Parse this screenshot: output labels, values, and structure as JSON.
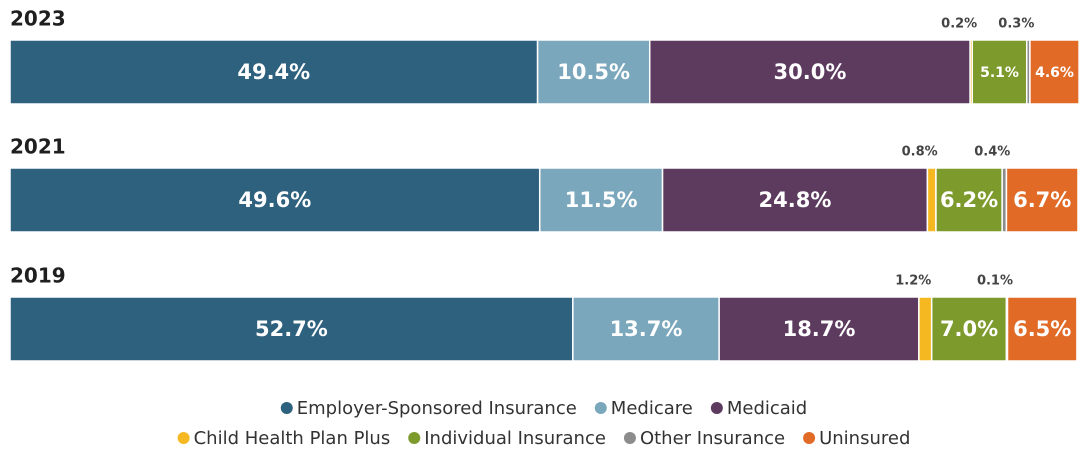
{
  "chart_data": {
    "type": "stacked-bar",
    "orientation": "horizontal",
    "categories": [
      "2023",
      "2021",
      "2019"
    ],
    "xlim": [
      0,
      100
    ],
    "series": [
      {
        "name": "Employer-Sponsored Insurance",
        "color": "#2e617e",
        "values": [
          49.4,
          49.6,
          52.7
        ],
        "value_labels": [
          "49.4%",
          "49.6%",
          "52.7%"
        ]
      },
      {
        "name": "Medicare",
        "color": "#7aa7bc",
        "values": [
          10.5,
          11.5,
          13.7
        ],
        "value_labels": [
          "10.5%",
          "11.5%",
          "13.7%"
        ]
      },
      {
        "name": "Medicaid",
        "color": "#5c3b5e",
        "values": [
          30,
          24.8,
          18.7
        ],
        "value_labels": [
          "30.0%",
          "24.8%",
          "18.7%"
        ]
      },
      {
        "name": "Child Health Plan Plus",
        "color": "#f5b820",
        "values": [
          0.2,
          0.8,
          1.2
        ],
        "value_labels": [
          "0.2%",
          "0.8%",
          "1.2%"
        ]
      },
      {
        "name": "Individual Insurance",
        "color": "#7d9a2c",
        "values": [
          5.1,
          6.2,
          7
        ],
        "value_labels": [
          "5.1%",
          "6.2%",
          "7.0%"
        ]
      },
      {
        "name": "Other Insurance",
        "color": "#8c8c8c",
        "values": [
          0.3,
          0.4,
          0.1
        ],
        "value_labels": [
          "0.3%",
          "0.4%",
          "0.1%"
        ]
      },
      {
        "name": "Uninsured",
        "color": "#e06a26",
        "values": [
          4.6,
          6.7,
          6.5
        ],
        "value_labels": [
          "4.6%",
          "6.7%",
          "6.5%"
        ]
      }
    ],
    "legend": "bottom"
  }
}
